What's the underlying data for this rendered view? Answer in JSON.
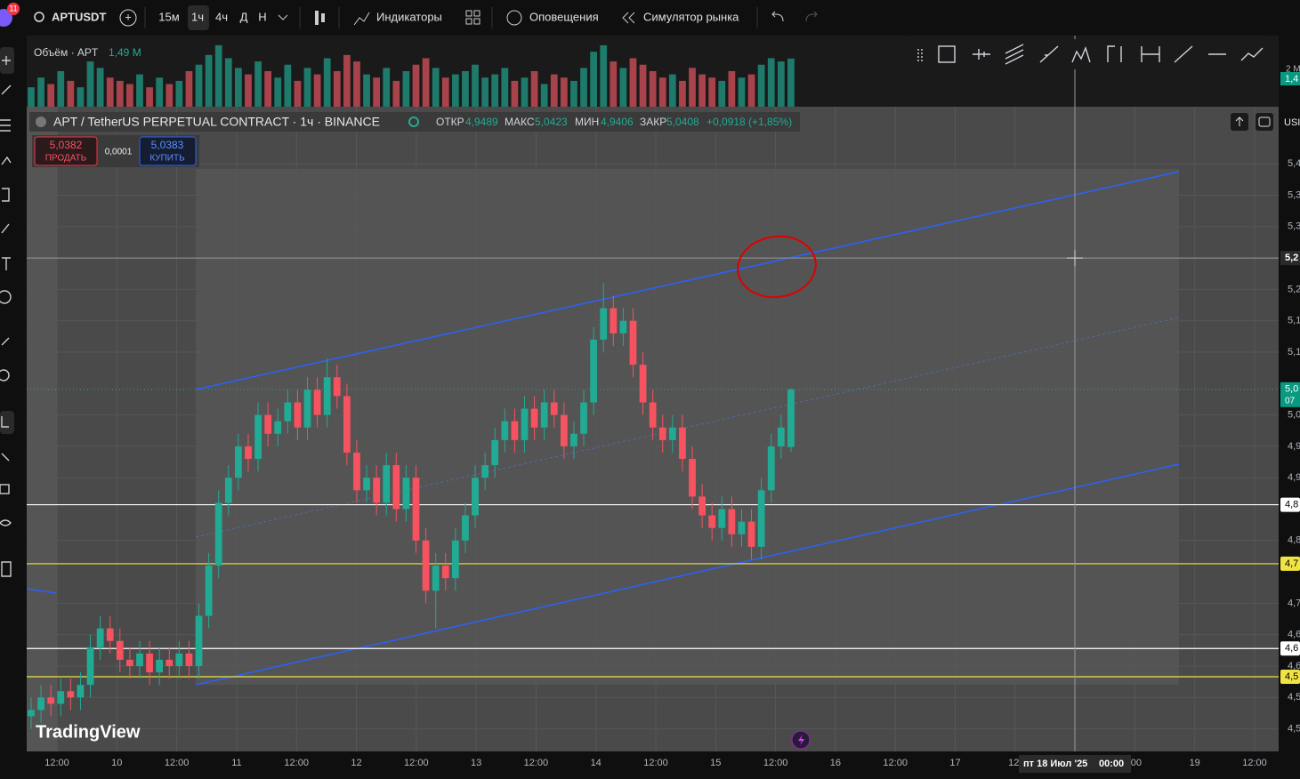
{
  "toolbar": {
    "badge": "11",
    "symbol": "APTUSDT",
    "intervals": [
      "15м",
      "1ч",
      "4ч",
      "Д",
      "Н"
    ],
    "indicators": "Индикаторы",
    "alerts": "Оповещения",
    "replay": "Симулятор рынка"
  },
  "volume_legend": {
    "title": "Объём · APT",
    "value": "1,49 M"
  },
  "legend": {
    "title": "APT / TetherUS PERPETUAL CONTRACT · 1ч · BINANCE",
    "open_label": "ОТКР",
    "open": "4,9489",
    "high_label": "МАКС",
    "high": "5,0423",
    "low_label": "МИН",
    "low": "4,9406",
    "close_label": "ЗАКР",
    "close": "5,0408",
    "change": "+0,0918 (+1,85%)"
  },
  "trade": {
    "sell_price": "5,0382",
    "sell": "ПРОДАТЬ",
    "spread": "0,0001",
    "buy_price": "5,0383",
    "buy": "КУПИТЬ"
  },
  "brand": "TradingView",
  "currency": "USI",
  "ylim": [
    4.464,
    5.491
  ],
  "yticks": [
    {
      "value": 5.4,
      "label": "5,4"
    },
    {
      "value": 5.35,
      "label": "5,3"
    },
    {
      "value": 5.3,
      "label": "5,3"
    },
    {
      "value": 5.2,
      "label": "5,2"
    },
    {
      "value": 5.15,
      "label": "5,1"
    },
    {
      "value": 5.1,
      "label": "5,1"
    },
    {
      "value": 5.0,
      "label": "5,0"
    },
    {
      "value": 4.95,
      "label": "4,9"
    },
    {
      "value": 4.9,
      "label": "4,9"
    },
    {
      "value": 4.8,
      "label": "4,8"
    },
    {
      "value": 4.7,
      "label": "4,7"
    },
    {
      "value": 4.65,
      "label": "4,6"
    },
    {
      "value": 4.6,
      "label": "4,6"
    },
    {
      "value": 4.55,
      "label": "4,5"
    },
    {
      "value": 4.5,
      "label": "4,5"
    }
  ],
  "levels": [
    {
      "value": 4.857,
      "label": "4,8",
      "color": "#ffffff"
    },
    {
      "value": 4.763,
      "label": "4,7",
      "color": "#f0e442"
    },
    {
      "value": 4.628,
      "label": "4,6",
      "color": "#ffffff"
    },
    {
      "value": 4.583,
      "label": "4,5",
      "color": "#f0e442"
    }
  ],
  "crosshair": {
    "price": 5.25,
    "price_label": "5,2",
    "date": "пт 18 Июл '25",
    "time": "00:00"
  },
  "last_price_label": [
    "5,0",
    "07"
  ],
  "time_labels": [
    "12:00",
    "10",
    "12:00",
    "11",
    "12:00",
    "12",
    "12:00",
    "13",
    "12:00",
    "14",
    "12:00",
    "15",
    "12:00",
    "16",
    "12:00",
    "17",
    "12:",
    null,
    ":00",
    "19",
    "12:00"
  ],
  "volume_ylim": [
    0,
    2.2
  ],
  "volume_axis_label": "2 M",
  "volume_last_label": "1,4",
  "candles": {
    "open": [
      4.52,
      4.53,
      4.55,
      4.54,
      4.56,
      4.55,
      4.57,
      4.63,
      4.66,
      4.64,
      4.61,
      4.6,
      4.62,
      4.59,
      4.61,
      4.6,
      4.62,
      4.6,
      4.68,
      4.76,
      4.86,
      4.9,
      4.95,
      4.93,
      5.0,
      4.97,
      4.99,
      5.02,
      4.98,
      5.04,
      5.0,
      5.06,
      5.03,
      4.94,
      4.88,
      4.9,
      4.86,
      4.92,
      4.85,
      4.9,
      4.8,
      4.72,
      4.76,
      4.74,
      4.8,
      4.84,
      4.9,
      4.92,
      4.96,
      4.99,
      4.96,
      5.01,
      4.98,
      5.02,
      5.0,
      4.95,
      4.97,
      5.02,
      5.12,
      5.17,
      5.13,
      5.15,
      5.08,
      5.02,
      4.98,
      4.96,
      4.98,
      4.93,
      4.87,
      4.84,
      4.82,
      4.85,
      4.81,
      4.83,
      4.79,
      4.88,
      4.95,
      4.9489
    ],
    "high": [
      4.55,
      4.57,
      4.57,
      4.58,
      4.58,
      4.59,
      4.65,
      4.68,
      4.68,
      4.66,
      4.63,
      4.64,
      4.64,
      4.63,
      4.63,
      4.64,
      4.64,
      4.7,
      4.78,
      4.88,
      4.92,
      4.97,
      4.97,
      5.02,
      5.02,
      5.01,
      5.04,
      5.04,
      5.06,
      5.06,
      5.09,
      5.08,
      5.05,
      4.96,
      4.92,
      4.92,
      4.94,
      4.94,
      4.92,
      4.92,
      4.82,
      4.78,
      4.78,
      4.82,
      4.86,
      4.92,
      4.94,
      4.98,
      5.01,
      5.01,
      5.03,
      5.03,
      5.04,
      5.04,
      5.02,
      4.99,
      5.04,
      5.14,
      5.21,
      5.19,
      5.17,
      5.17,
      5.1,
      5.04,
      5.0,
      5.0,
      5.0,
      4.95,
      4.89,
      4.86,
      4.87,
      4.87,
      4.85,
      4.85,
      4.9,
      4.97,
      5.0,
      5.0423
    ],
    "low": [
      4.5,
      4.51,
      4.52,
      4.52,
      4.53,
      4.53,
      4.55,
      4.61,
      4.62,
      4.59,
      4.58,
      4.58,
      4.57,
      4.57,
      4.58,
      4.58,
      4.58,
      4.58,
      4.66,
      4.74,
      4.84,
      4.88,
      4.91,
      4.91,
      4.95,
      4.95,
      4.97,
      4.96,
      4.96,
      4.98,
      4.98,
      5.01,
      4.92,
      4.86,
      4.86,
      4.84,
      4.84,
      4.83,
      4.83,
      4.78,
      4.7,
      4.66,
      4.72,
      4.72,
      4.78,
      4.82,
      4.88,
      4.9,
      4.94,
      4.94,
      4.94,
      4.96,
      4.96,
      4.98,
      4.93,
      4.93,
      4.95,
      5.0,
      5.1,
      5.11,
      5.11,
      5.06,
      5.0,
      4.96,
      4.94,
      4.94,
      4.91,
      4.85,
      4.82,
      4.8,
      4.8,
      4.79,
      4.79,
      4.77,
      4.77,
      4.86,
      4.93,
      4.9406
    ],
    "close": [
      4.53,
      4.55,
      4.54,
      4.56,
      4.55,
      4.57,
      4.63,
      4.66,
      4.64,
      4.61,
      4.6,
      4.62,
      4.59,
      4.61,
      4.6,
      4.62,
      4.6,
      4.68,
      4.76,
      4.86,
      4.9,
      4.95,
      4.93,
      5.0,
      4.97,
      4.99,
      5.02,
      4.98,
      5.04,
      5.0,
      5.06,
      5.03,
      4.94,
      4.88,
      4.9,
      4.86,
      4.92,
      4.85,
      4.9,
      4.8,
      4.72,
      4.76,
      4.74,
      4.8,
      4.84,
      4.9,
      4.92,
      4.96,
      4.99,
      4.96,
      5.01,
      4.98,
      5.02,
      5.0,
      4.95,
      4.97,
      5.02,
      5.12,
      5.17,
      5.13,
      5.15,
      5.08,
      5.02,
      4.98,
      4.96,
      4.98,
      4.93,
      4.87,
      4.84,
      4.82,
      4.85,
      4.81,
      4.83,
      4.79,
      4.88,
      4.95,
      4.98,
      5.0408
    ],
    "volume": [
      0.6,
      0.9,
      0.7,
      1.1,
      0.8,
      0.6,
      1.4,
      1.2,
      0.9,
      0.8,
      0.7,
      1.0,
      0.6,
      0.9,
      0.7,
      0.8,
      1.1,
      1.3,
      1.6,
      1.9,
      1.5,
      1.2,
      1.0,
      1.4,
      1.1,
      0.9,
      1.3,
      0.8,
      1.2,
      1.0,
      1.5,
      1.1,
      1.6,
      1.4,
      1.0,
      0.9,
      1.2,
      0.8,
      1.1,
      1.3,
      1.5,
      1.2,
      0.9,
      1.0,
      1.1,
      1.3,
      0.9,
      1.0,
      1.2,
      0.8,
      0.9,
      1.1,
      0.7,
      1.0,
      0.9,
      0.8,
      1.2,
      1.7,
      1.9,
      1.4,
      1.2,
      1.5,
      1.3,
      1.1,
      0.9,
      1.0,
      0.8,
      1.2,
      1.0,
      0.9,
      0.8,
      1.1,
      0.9,
      1.0,
      1.3,
      1.5,
      1.4,
      1.49
    ]
  }
}
